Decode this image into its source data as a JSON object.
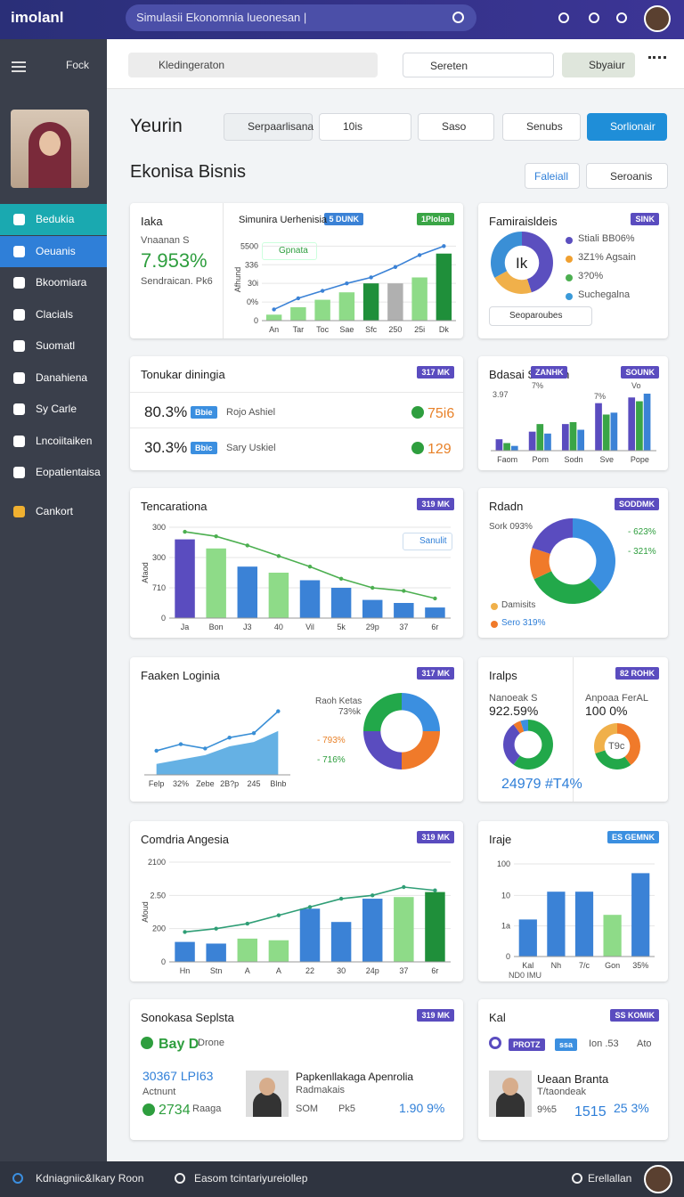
{
  "topbar": {
    "logo": "imolanl",
    "search": "Simulasii Ekonomnia lueonesan |"
  },
  "sidebar": {
    "top": "Fock",
    "items": [
      "Bedukia",
      "Oeuanis",
      "Bkoomiara",
      "Clacials",
      "Suomatl",
      "Danahiena",
      "Sy Carle",
      "Lncoiitaiken",
      "Eopatientaisa",
      "Cankort"
    ]
  },
  "toolbar": {
    "search": "Kledingeraton",
    "select": "Sereten",
    "button": "Sbyaiur"
  },
  "header": {
    "title": "Yeurin",
    "filters": [
      "Serpaarlisana",
      "10is",
      "Saso",
      "Senubs"
    ],
    "action": "Sorlionair"
  },
  "section": {
    "title": "Ekonisa Bisnis",
    "button": "Faleiall",
    "select": "Seroanis"
  },
  "panels": [
    {
      "title": "Iaka",
      "badges": [
        "5 DUNK",
        "1Plolan"
      ],
      "badge_colors": [
        "#3b82d6",
        "#3aa546"
      ],
      "stat_label": "Vnaanan S",
      "stat": "7.953%",
      "note": "Sendraican. Pk6",
      "subtitle": "Simunira Uerhenisia",
      "legend": "Gpnata",
      "chart": {
        "type": "bar-line",
        "ylabel": "Afhund",
        "categories": [
          "An",
          "Tar",
          "Toc",
          "Sae",
          "Sfc",
          "250",
          "25i",
          "Dk"
        ],
        "values": [
          8,
          18,
          28,
          38,
          50,
          50,
          58,
          90
        ],
        "colors": [
          "#8edb88",
          "#8edb88",
          "#8edb88",
          "#8edb88",
          "#1f8f3a",
          "#b0b0b0",
          "#8edb88",
          "#1f8f3a"
        ],
        "line": [
          15,
          30,
          40,
          50,
          58,
          72,
          88,
          100
        ],
        "line_color": "#3b82d6",
        "ylim": [
          0,
          110
        ],
        "yticks": [
          0,
          {
            "value": 25,
            "label": "0%"
          },
          {
            "value": 50,
            "label": "30i"
          },
          {
            "value": 75,
            "label": "336"
          },
          {
            "value": 100,
            "label": "5500"
          }
        ]
      }
    },
    {
      "title": "Famiraisldeis",
      "badges": [
        "SINK"
      ],
      "badge_colors": [
        "#5a4cbf"
      ],
      "center": "Ik",
      "legend": [
        "Stiali BB06%",
        "3Z1% Agsain",
        "3?0%",
        "Suchegalna"
      ],
      "legend_colors": [
        "#5b4fbf",
        "#f0a030",
        "#4caf50",
        "#3a9ad9"
      ],
      "select": "Seoparoubes",
      "chart": {
        "type": "donut",
        "values": [
          45,
          22,
          33
        ],
        "colors": [
          "#5b4fbf",
          "#f0b04a",
          "#3a8fd6"
        ]
      }
    },
    {
      "title": "Tonukar diningia",
      "badges": [
        "317 MK"
      ],
      "badge_colors": [
        "#5a4cbf"
      ],
      "rows": [
        {
          "value": "80.3%",
          "tag": "Bbie",
          "label": "Rojo Ashiel",
          "stat": "75i6"
        },
        {
          "value": "30.3%",
          "tag": "Bbic",
          "label": "Sary Uskiel",
          "stat": "129"
        }
      ]
    },
    {
      "title": "Bdasai SOutian",
      "badges": [
        "ZANHK",
        "SOUNK"
      ],
      "badge_colors": [
        "#5a4cbf",
        "#5a4cbf"
      ],
      "labels": [
        "3.97",
        "7%",
        "7%",
        "Vo"
      ],
      "chart": {
        "type": "grouped-bar",
        "categories": [
          "Faom",
          "Pom",
          "Sodn",
          "Sve",
          "Pope"
        ],
        "ylim": [
          0,
          60
        ],
        "series": [
          {
            "color": "#5a4cbf",
            "values": [
              12,
              20,
              28,
              50,
              56
            ]
          },
          {
            "color": "#3aa546",
            "values": [
              8,
              28,
              30,
              38,
              52
            ]
          },
          {
            "color": "#3b82d6",
            "values": [
              5,
              18,
              22,
              40,
              60
            ]
          }
        ]
      }
    },
    {
      "title": "Tencarationa",
      "badges": [
        "319 MK"
      ],
      "badge_colors": [
        "#5a4cbf"
      ],
      "legend": "Sanulit",
      "chart": {
        "type": "bar-line",
        "ylabel": "Afaod",
        "categories": [
          "Ja",
          "Bon",
          "J3",
          "40",
          "Vil",
          "5k",
          "29p",
          "37",
          "6r"
        ],
        "values": [
          260,
          230,
          170,
          150,
          125,
          100,
          60,
          50,
          35
        ],
        "colors": [
          "#5a4cbf",
          "#8edb88",
          "#3b82d6",
          "#8edb88",
          "#3b82d6",
          "#3b82d6",
          "#3b82d6",
          "#3b82d6",
          "#3b82d6"
        ],
        "line": [
          285,
          270,
          240,
          205,
          170,
          130,
          100,
          90,
          65
        ],
        "line_color": "#4caf50",
        "ylim": [
          0,
          300
        ],
        "yticks": [
          0,
          {
            "value": 100,
            "label": "710"
          },
          {
            "value": 200,
            "label": "300"
          },
          300
        ]
      }
    },
    {
      "title": "Rdadn",
      "badges": [
        "SODDMK"
      ],
      "badge_colors": [
        "#5a4cbf"
      ],
      "labels": [
        "Sork 093%",
        "- 623%",
        "- 321%",
        "Damisits",
        "Sero 319%"
      ],
      "chart": {
        "type": "donut",
        "values": [
          38,
          30,
          12,
          20
        ],
        "colors": [
          "#3b8fe0",
          "#22a84a",
          "#f07a2a",
          "#5a4cbf"
        ]
      }
    },
    {
      "title": "Faaken Loginia",
      "badges": [
        "317 MK"
      ],
      "badge_colors": [
        "#5a4cbf"
      ],
      "labels": [
        "Raoh Ketas",
        "73%k",
        "- 793%",
        "- 716%"
      ],
      "chart": {
        "type": "area",
        "categories": [
          "Felp",
          "32%",
          "Zebe",
          "2B?p",
          "245",
          "Blnb"
        ],
        "values": [
          10,
          14,
          18,
          26,
          30,
          40
        ],
        "line": [
          22,
          28,
          24,
          34,
          38,
          58
        ],
        "color": "#4aa3df",
        "line_color": "#3a8fd6",
        "ylim": [
          0,
          65
        ]
      },
      "chart2": {
        "type": "donut",
        "values": [
          25,
          25,
          25,
          25
        ],
        "colors": [
          "#3b8fe0",
          "#f07a2a",
          "#5a4cbf",
          "#22a84a"
        ]
      }
    },
    {
      "title": "Iralps",
      "badges": [
        "82 ROHK"
      ],
      "badge_colors": [
        "#5a4cbf"
      ],
      "labels": [
        "Nanoeak S",
        "922.59%",
        "24979 #T4%",
        "Anpoaa FerAL",
        "100 0%",
        "T9c"
      ],
      "chart": {
        "type": "donut",
        "values": [
          60,
          30,
          5,
          5
        ],
        "colors": [
          "#22a84a",
          "#5a4cbf",
          "#f07a2a",
          "#3b8fe0"
        ]
      },
      "chart2": {
        "type": "donut",
        "values": [
          40,
          30,
          30
        ],
        "colors": [
          "#f07a2a",
          "#22a84a",
          "#f0b04a"
        ]
      }
    },
    {
      "title": "Comdria Angesia",
      "badges": [
        "319 MK"
      ],
      "badge_colors": [
        "#5a4cbf"
      ],
      "chart": {
        "type": "bar-line",
        "ylabel": "Afoud",
        "categories": [
          "Hn",
          "Stn",
          "A",
          "A",
          "22",
          "30",
          "24p",
          "37",
          "6r"
        ],
        "values": [
          60,
          55,
          70,
          65,
          160,
          120,
          190,
          195,
          210
        ],
        "colors": [
          "#3b82d6",
          "#3b82d6",
          "#8edb88",
          "#8edb88",
          "#3b82d6",
          "#3b82d6",
          "#3b82d6",
          "#8edb88",
          "#1f8f3a"
        ],
        "line": [
          90,
          100,
          115,
          140,
          165,
          190,
          200,
          225,
          215
        ],
        "line_color": "#2f9e76",
        "ylim": [
          0,
          300
        ],
        "yticks": [
          0,
          {
            "value": 100,
            "label": "200"
          },
          {
            "value": 200,
            "label": "2.50"
          },
          {
            "value": 300,
            "label": "2100"
          }
        ]
      }
    },
    {
      "title": "Iraje",
      "badges": [
        "ES GEMNK"
      ],
      "badge_colors": [
        "#3b8fe0"
      ],
      "labels": [
        "ND0 IMU"
      ],
      "chart": {
        "type": "bar",
        "categories": [
          "Kal",
          "Nh",
          "7/c",
          "Gon",
          "35%"
        ],
        "values": [
          40,
          70,
          70,
          45,
          90
        ],
        "colors": [
          "#3b82d6",
          "#3b82d6",
          "#3b82d6",
          "#8edb88",
          "#3b82d6"
        ],
        "ylim": [
          0,
          100
        ],
        "yticks": [
          0,
          {
            "value": 33,
            "label": "1a"
          },
          {
            "value": 66,
            "label": "10"
          },
          100
        ]
      }
    },
    {
      "title": "Sonokasa Seplsta",
      "badges": [
        "319 MK"
      ],
      "badge_colors": [
        "#5a4cbf"
      ],
      "labels": [
        "Bay D",
        "Drone",
        "30367 LPI63",
        "Actnunt",
        "2734",
        "Raaga",
        "Papkenllakaga Apenrolia",
        "Radmakais",
        "SOM",
        "Pk5",
        "1.90 9%"
      ]
    },
    {
      "title": "Kal",
      "badges": [
        "SS KOMIK"
      ],
      "badge_colors": [
        "#5a4cbf"
      ],
      "labels": [
        "PROTZ",
        "ssa",
        "Ion .53",
        "Ato",
        "Ueaan Branta",
        "T/taondeak",
        "9%5",
        "1515",
        "25 3%"
      ]
    }
  ],
  "footer": {
    "left": "Kdniagniic&Ikary Roon",
    "middle": "Easom tcintariyureiollep",
    "right": "Erellallan"
  }
}
